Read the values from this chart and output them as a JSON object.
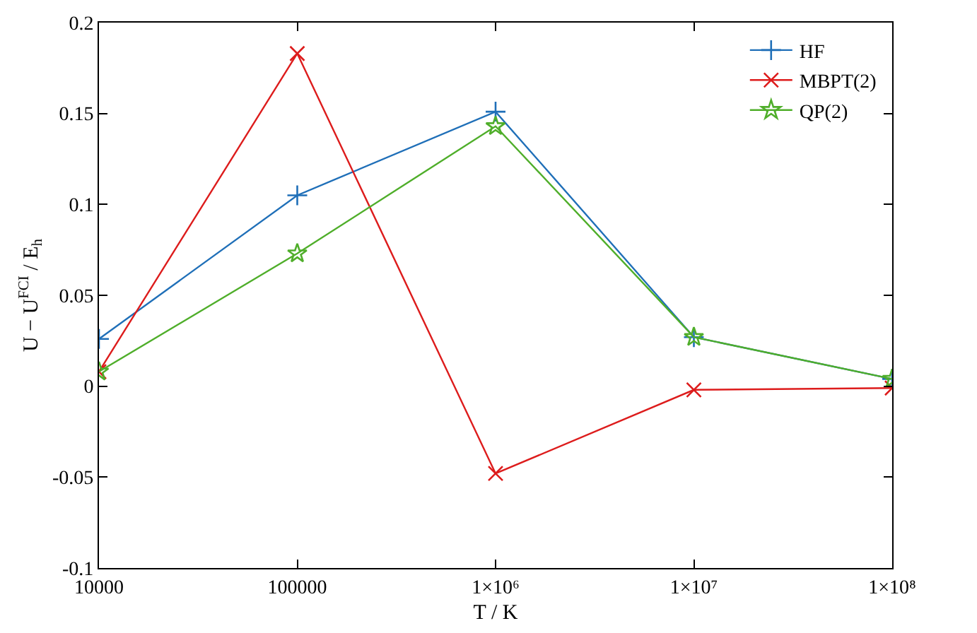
{
  "chart_data": {
    "type": "line",
    "xlabel": "T / K",
    "ylabel": "U − U$^{FCI}$ / E$_{h}$",
    "x": [
      10000,
      100000,
      1000000,
      10000000,
      100000000
    ],
    "xlim": [
      10000,
      100000000
    ],
    "log": "x",
    "xticks": [
      10000,
      100000,
      {
        "value": 1000000,
        "label": "1×10⁶"
      },
      {
        "value": 10000000,
        "label": "1×10⁷"
      },
      {
        "value": 100000000,
        "label": "1×10⁸"
      }
    ],
    "ylim": [
      -0.1,
      0.2
    ],
    "yticks": [
      -0.1,
      -0.05,
      0,
      0.05,
      0.1,
      0.15,
      0.2
    ],
    "legend": "top right",
    "series": [
      {
        "name": "HF",
        "color": "#1f6fb8",
        "marker": "cross",
        "values": [
          0.026,
          0.105,
          0.151,
          0.027,
          0.004
        ]
      },
      {
        "name": "MBPT(2)",
        "color": "#dd1c1c",
        "marker": "x",
        "values": [
          0.008,
          0.183,
          -0.048,
          -0.002,
          -0.001
        ]
      },
      {
        "name": "QP(2)",
        "color": "#4fae2a",
        "marker": "star",
        "values": [
          0.008,
          0.073,
          0.143,
          0.027,
          0.004
        ]
      }
    ]
  }
}
